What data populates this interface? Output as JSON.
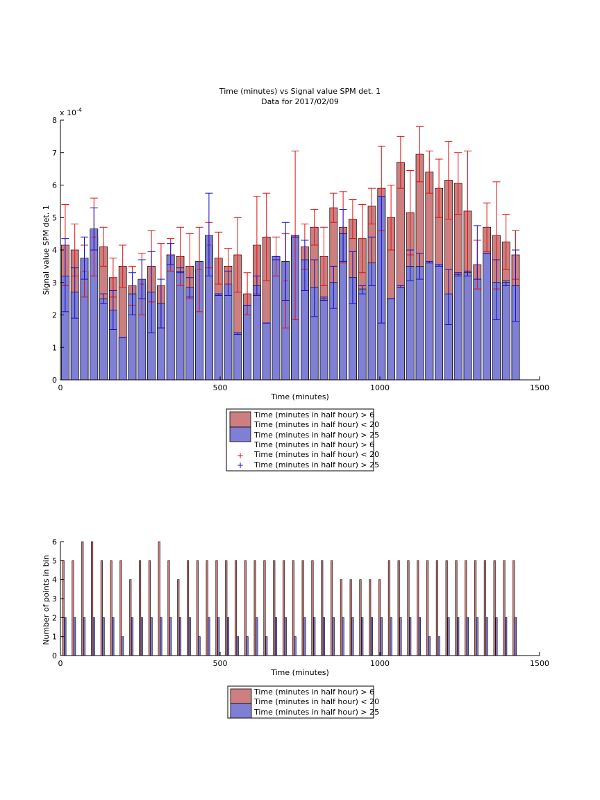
{
  "figure": {
    "title_line1": "Time (minutes) vs Signal value SPM det. 1",
    "title_line2": "Data for 2017/02/09"
  },
  "colors": {
    "red_bar": "#cd7f7f",
    "blue_bar": "#7f7fd6",
    "red_err": "#dd1111",
    "blue_err": "#1111cc",
    "axis": "#000000"
  },
  "chart_data": [
    {
      "type": "bar",
      "xlabel": "Time (minutes)",
      "ylabel": "Signal value SPM det. 1",
      "exponent_label": "x 10",
      "exponent_power": "-4",
      "xlim": [
        0,
        1500
      ],
      "ylim": [
        0,
        8
      ],
      "y_scale_factor": "1e-4",
      "xticks": [
        0,
        500,
        1000,
        1500
      ],
      "yticks": [
        0,
        1,
        2,
        3,
        4,
        5,
        6,
        7,
        8
      ],
      "bin_centers": [
        15,
        45,
        75,
        105,
        135,
        165,
        195,
        225,
        255,
        285,
        315,
        345,
        375,
        405,
        435,
        465,
        495,
        525,
        555,
        585,
        615,
        645,
        675,
        705,
        735,
        765,
        795,
        825,
        855,
        885,
        915,
        945,
        975,
        1005,
        1035,
        1065,
        1095,
        1125,
        1155,
        1185,
        1215,
        1245,
        1275,
        1305,
        1335,
        1365,
        1395,
        1425
      ],
      "legend": [
        "Time (minutes in half hour) > 6",
        "Time (minutes in half hour) < 20",
        "Time (minutes in half hour) > 25",
        "Time (minutes in half hour) > 6",
        "Time (minutes in half hour) < 20",
        "Time (minutes in half hour) > 25"
      ],
      "series": [
        {
          "name": "Time (minutes in half hour) > 6 Time (minutes in half hour) < 20",
          "values": [
            4.15,
            4.0,
            3.35,
            4.4,
            4.1,
            3.15,
            3.5,
            2.9,
            2.95,
            3.5,
            2.9,
            3.85,
            3.8,
            3.5,
            3.4,
            4.15,
            3.75,
            3.5,
            3.85,
            2.65,
            4.15,
            4.4,
            3.8,
            3.05,
            4.45,
            4.1,
            4.7,
            3.8,
            5.3,
            4.7,
            4.95,
            4.35,
            5.35,
            5.9,
            5.0,
            6.7,
            5.15,
            6.95,
            6.4,
            5.9,
            6.15,
            6.05,
            5.2,
            3.55,
            4.7,
            4.45,
            4.25,
            3.85
          ],
          "errors": [
            1.25,
            0.8,
            0.8,
            1.2,
            0.6,
            0.6,
            0.65,
            0.6,
            0.95,
            1.1,
            1.3,
            0.5,
            0.9,
            1.0,
            1.3,
            0.7,
            0.8,
            0.55,
            1.15,
            0.65,
            1.5,
            1.35,
            0.6,
            1.45,
            2.6,
            0.7,
            0.55,
            0.9,
            0.45,
            1.1,
            0.6,
            1.05,
            0.55,
            1.3,
            1.0,
            0.8,
            1.3,
            0.85,
            0.65,
            0.9,
            1.2,
            0.95,
            1.85,
            0.75,
            0.75,
            1.65,
            0.85,
            0.75
          ]
        },
        {
          "name": "Time (minutes in half hour) > 25",
          "values": [
            3.2,
            2.7,
            3.75,
            4.65,
            2.5,
            2.15,
            1.3,
            2.65,
            3.1,
            2.7,
            2.35,
            3.85,
            3.35,
            2.85,
            3.65,
            4.45,
            2.65,
            2.95,
            1.45,
            2.3,
            2.9,
            1.75,
            3.8,
            3.65,
            4.4,
            3.7,
            2.85,
            2.5,
            3.0,
            4.5,
            3.15,
            2.8,
            3.6,
            5.65,
            2.5,
            2.85,
            3.5,
            3.5,
            3.6,
            3.55,
            2.65,
            3.25,
            3.3,
            3.1,
            3.9,
            3.0,
            3.0,
            2.9
          ]
        }
      ],
      "blue_error_bars": [
        {
          "bin": 15,
          "low": 2.1,
          "high": 4.35
        },
        {
          "bin": 45,
          "low": 1.9,
          "high": 3.45
        },
        {
          "bin": 75,
          "low": 3.1,
          "high": 4.4
        },
        {
          "bin": 105,
          "low": 4.0,
          "high": 5.3
        },
        {
          "bin": 135,
          "low": 2.35,
          "high": 2.65
        },
        {
          "bin": 165,
          "low": 1.55,
          "high": 2.75
        },
        {
          "bin": 195,
          "low": 1.3,
          "high": 1.3
        },
        {
          "bin": 225,
          "low": 2.0,
          "high": 3.3
        },
        {
          "bin": 255,
          "low": 2.5,
          "high": 3.7
        },
        {
          "bin": 285,
          "low": 1.45,
          "high": 3.95
        },
        {
          "bin": 315,
          "low": 1.6,
          "high": 3.1
        },
        {
          "bin": 345,
          "low": 3.55,
          "high": 4.2
        },
        {
          "bin": 375,
          "low": 3.3,
          "high": 3.45
        },
        {
          "bin": 405,
          "low": 2.55,
          "high": 3.15
        },
        {
          "bin": 465,
          "low": 3.2,
          "high": 5.75
        },
        {
          "bin": 495,
          "low": 2.6,
          "high": 2.65
        },
        {
          "bin": 525,
          "low": 2.6,
          "high": 3.35
        },
        {
          "bin": 555,
          "low": 1.4,
          "high": 1.45
        },
        {
          "bin": 585,
          "low": 2.3,
          "high": 2.3
        },
        {
          "bin": 615,
          "low": 2.6,
          "high": 3.2
        },
        {
          "bin": 645,
          "low": 1.75,
          "high": 1.75
        },
        {
          "bin": 675,
          "low": 3.7,
          "high": 3.8
        },
        {
          "bin": 705,
          "low": 2.45,
          "high": 4.85
        },
        {
          "bin": 735,
          "low": 4.4,
          "high": 4.45
        },
        {
          "bin": 765,
          "low": 2.75,
          "high": 4.3
        },
        {
          "bin": 795,
          "low": 1.95,
          "high": 3.7
        },
        {
          "bin": 825,
          "low": 2.45,
          "high": 2.55
        },
        {
          "bin": 855,
          "low": 2.2,
          "high": 3.5
        },
        {
          "bin": 885,
          "low": 3.65,
          "high": 5.25
        },
        {
          "bin": 915,
          "low": 2.35,
          "high": 3.95
        },
        {
          "bin": 945,
          "low": 2.65,
          "high": 2.9
        },
        {
          "bin": 975,
          "low": 2.9,
          "high": 4.4
        },
        {
          "bin": 1005,
          "low": 1.75,
          "high": 5.65
        },
        {
          "bin": 1035,
          "low": 2.5,
          "high": 2.5
        },
        {
          "bin": 1065,
          "low": 2.85,
          "high": 2.9
        },
        {
          "bin": 1095,
          "low": 3.05,
          "high": 4.0
        },
        {
          "bin": 1125,
          "low": 3.1,
          "high": 3.9
        },
        {
          "bin": 1155,
          "low": 3.6,
          "high": 3.65
        },
        {
          "bin": 1185,
          "low": 3.5,
          "high": 3.55
        },
        {
          "bin": 1215,
          "low": 1.7,
          "high": 3.4
        },
        {
          "bin": 1245,
          "low": 3.2,
          "high": 3.3
        },
        {
          "bin": 1275,
          "low": 3.2,
          "high": 3.35
        },
        {
          "bin": 1305,
          "low": 3.1,
          "high": 4.75
        },
        {
          "bin": 1335,
          "low": 3.9,
          "high": 3.9
        },
        {
          "bin": 1365,
          "low": 1.85,
          "high": 3.7
        },
        {
          "bin": 1395,
          "low": 2.9,
          "high": 3.05
        },
        {
          "bin": 1425,
          "low": 1.8,
          "high": 4.0
        }
      ]
    },
    {
      "type": "bar",
      "xlabel": "Time (minutes)",
      "ylabel": "Number of points in bin",
      "xlim": [
        0,
        1500
      ],
      "ylim": [
        0,
        6
      ],
      "xticks": [
        0,
        500,
        1000,
        1500
      ],
      "yticks": [
        0,
        1,
        2,
        3,
        4,
        5,
        6
      ],
      "bin_centers": [
        15,
        45,
        75,
        105,
        135,
        165,
        195,
        225,
        255,
        285,
        315,
        345,
        375,
        405,
        435,
        465,
        495,
        525,
        555,
        585,
        615,
        645,
        675,
        705,
        735,
        765,
        795,
        825,
        855,
        885,
        915,
        945,
        975,
        1005,
        1035,
        1065,
        1095,
        1125,
        1155,
        1185,
        1215,
        1245,
        1275,
        1305,
        1335,
        1365,
        1395,
        1425
      ],
      "legend": [
        "Time (minutes in half hour) > 6",
        "Time (minutes in half hour) < 20",
        "Time (minutes in half hour) > 25"
      ],
      "series": [
        {
          "name": "Time (minutes in half hour) > 6 Time (minutes in half hour) < 20",
          "values": [
            5,
            5,
            6,
            6,
            5,
            5,
            5,
            4,
            5,
            5,
            6,
            5,
            4,
            5,
            5,
            5,
            5,
            5,
            5,
            5,
            5,
            5,
            5,
            5,
            5,
            5,
            5,
            5,
            5,
            4,
            4,
            4,
            4,
            4,
            5,
            5,
            5,
            5,
            5,
            5,
            5,
            5,
            5,
            5,
            5,
            5,
            5,
            5
          ]
        },
        {
          "name": "Time (minutes in half hour) > 25",
          "values": [
            2,
            2,
            2,
            2,
            2,
            2,
            1,
            2,
            2,
            2,
            2,
            2,
            2,
            2,
            1,
            2,
            2,
            2,
            1,
            1,
            2,
            1,
            2,
            2,
            1,
            2,
            2,
            2,
            2,
            2,
            2,
            2,
            2,
            2,
            2,
            2,
            2,
            2,
            1,
            1,
            2,
            2,
            2,
            2,
            2,
            2,
            2,
            2
          ]
        }
      ]
    }
  ]
}
